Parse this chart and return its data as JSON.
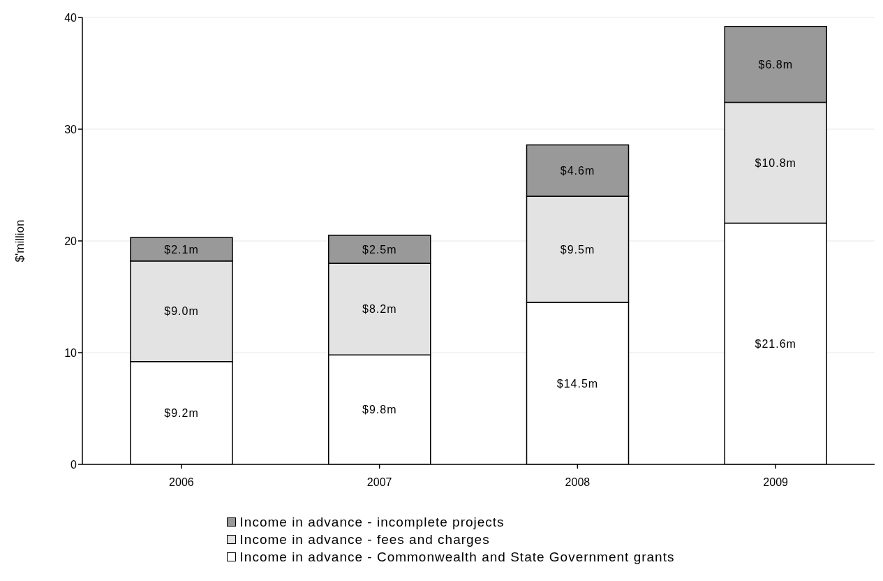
{
  "chart_data": {
    "type": "bar",
    "stacked": true,
    "ylabel": "$'million",
    "categories": [
      "2006",
      "2007",
      "2008",
      "2009"
    ],
    "series": [
      {
        "name": "Income in advance - Commonwealth and State Government grants",
        "color": "#ffffff",
        "values": [
          9.2,
          9.8,
          14.5,
          21.6
        ],
        "value_labels": [
          "$9.2m",
          "$9.8m",
          "$14.5m",
          "$21.6m"
        ]
      },
      {
        "name": "Income in advance - fees and charges",
        "color": "#e3e3e3",
        "values": [
          9.0,
          8.2,
          9.5,
          10.8
        ],
        "value_labels": [
          "$9.0m",
          "$8.2m",
          "$9.5m",
          "$10.8m"
        ]
      },
      {
        "name": "Income in advance - incomplete projects",
        "color": "#999999",
        "values": [
          2.1,
          2.5,
          4.6,
          6.8
        ],
        "value_labels": [
          "$2.1m",
          "$2.5m",
          "$4.6m",
          "$6.8m"
        ]
      }
    ],
    "ylim": [
      0,
      40
    ],
    "yticks": [
      0,
      10,
      20,
      30,
      40
    ],
    "grid": "y",
    "legend": "bottom"
  }
}
